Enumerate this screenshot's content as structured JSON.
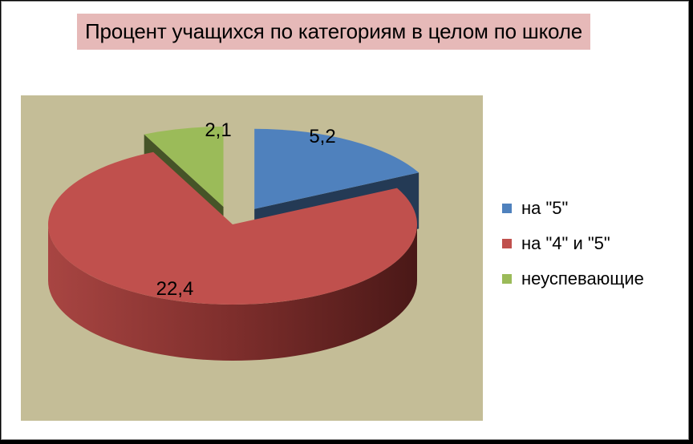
{
  "chart_data": {
    "type": "pie",
    "title": "Процент учащихся по категориям в целом по школе",
    "categories": [
      "на \"5\"",
      "на \"4\" и \"5\"",
      "неуспевающие"
    ],
    "values": [
      5.2,
      22.4,
      2.1
    ],
    "value_labels": [
      "5,2",
      "22,4",
      "2,1"
    ],
    "colors": [
      "#4f81bd",
      "#c0504d",
      "#9bbb59"
    ],
    "legend_position": "right",
    "style": "3d-exploded"
  }
}
